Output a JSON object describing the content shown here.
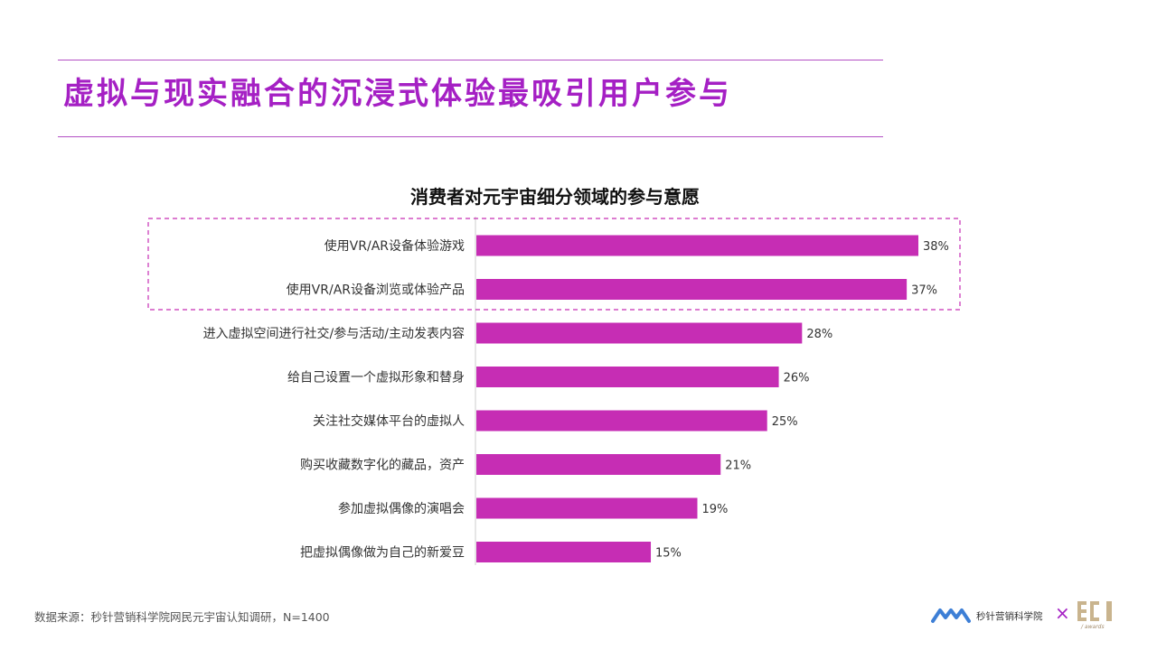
{
  "headline": "虚拟与现实融合的沉浸式体验最吸引用户参与",
  "chart_data": {
    "type": "bar",
    "orientation": "horizontal",
    "title": "消费者对元宇宙细分领域的参与意愿",
    "categories": [
      "使用VR/AR设备体验游戏",
      "使用VR/AR设备浏览或体验产品",
      "进入虚拟空间进行社交/参与活动/主动发表内容",
      "给自己设置一个虚拟形象和替身",
      "关注社交媒体平台的虚拟人",
      "购买收藏数字化的藏品，资产",
      "参加虚拟偶像的演唱会",
      "把虚拟偶像做为自己的新爱豆"
    ],
    "values": [
      38,
      37,
      28,
      26,
      25,
      21,
      19,
      15
    ],
    "value_labels": [
      "38%",
      "37%",
      "28%",
      "26%",
      "25%",
      "21%",
      "19%",
      "15%"
    ],
    "unit": "%",
    "highlighted_categories": [
      0,
      1
    ],
    "bar_color": "#c62db4",
    "grid": false,
    "legend": "none"
  },
  "footer": {
    "source": "数据来源：秒针营销科学院网民元宇宙认知调研，N=1400",
    "logo_text": "秒针营销科学院",
    "award_mark": "ECI",
    "award_sub": "/ awards",
    "cross": "×"
  },
  "colors": {
    "accent": "#a520c4",
    "bar": "#c62db4",
    "rule": "#b34fc4",
    "highlight_border": "#c62db4"
  }
}
